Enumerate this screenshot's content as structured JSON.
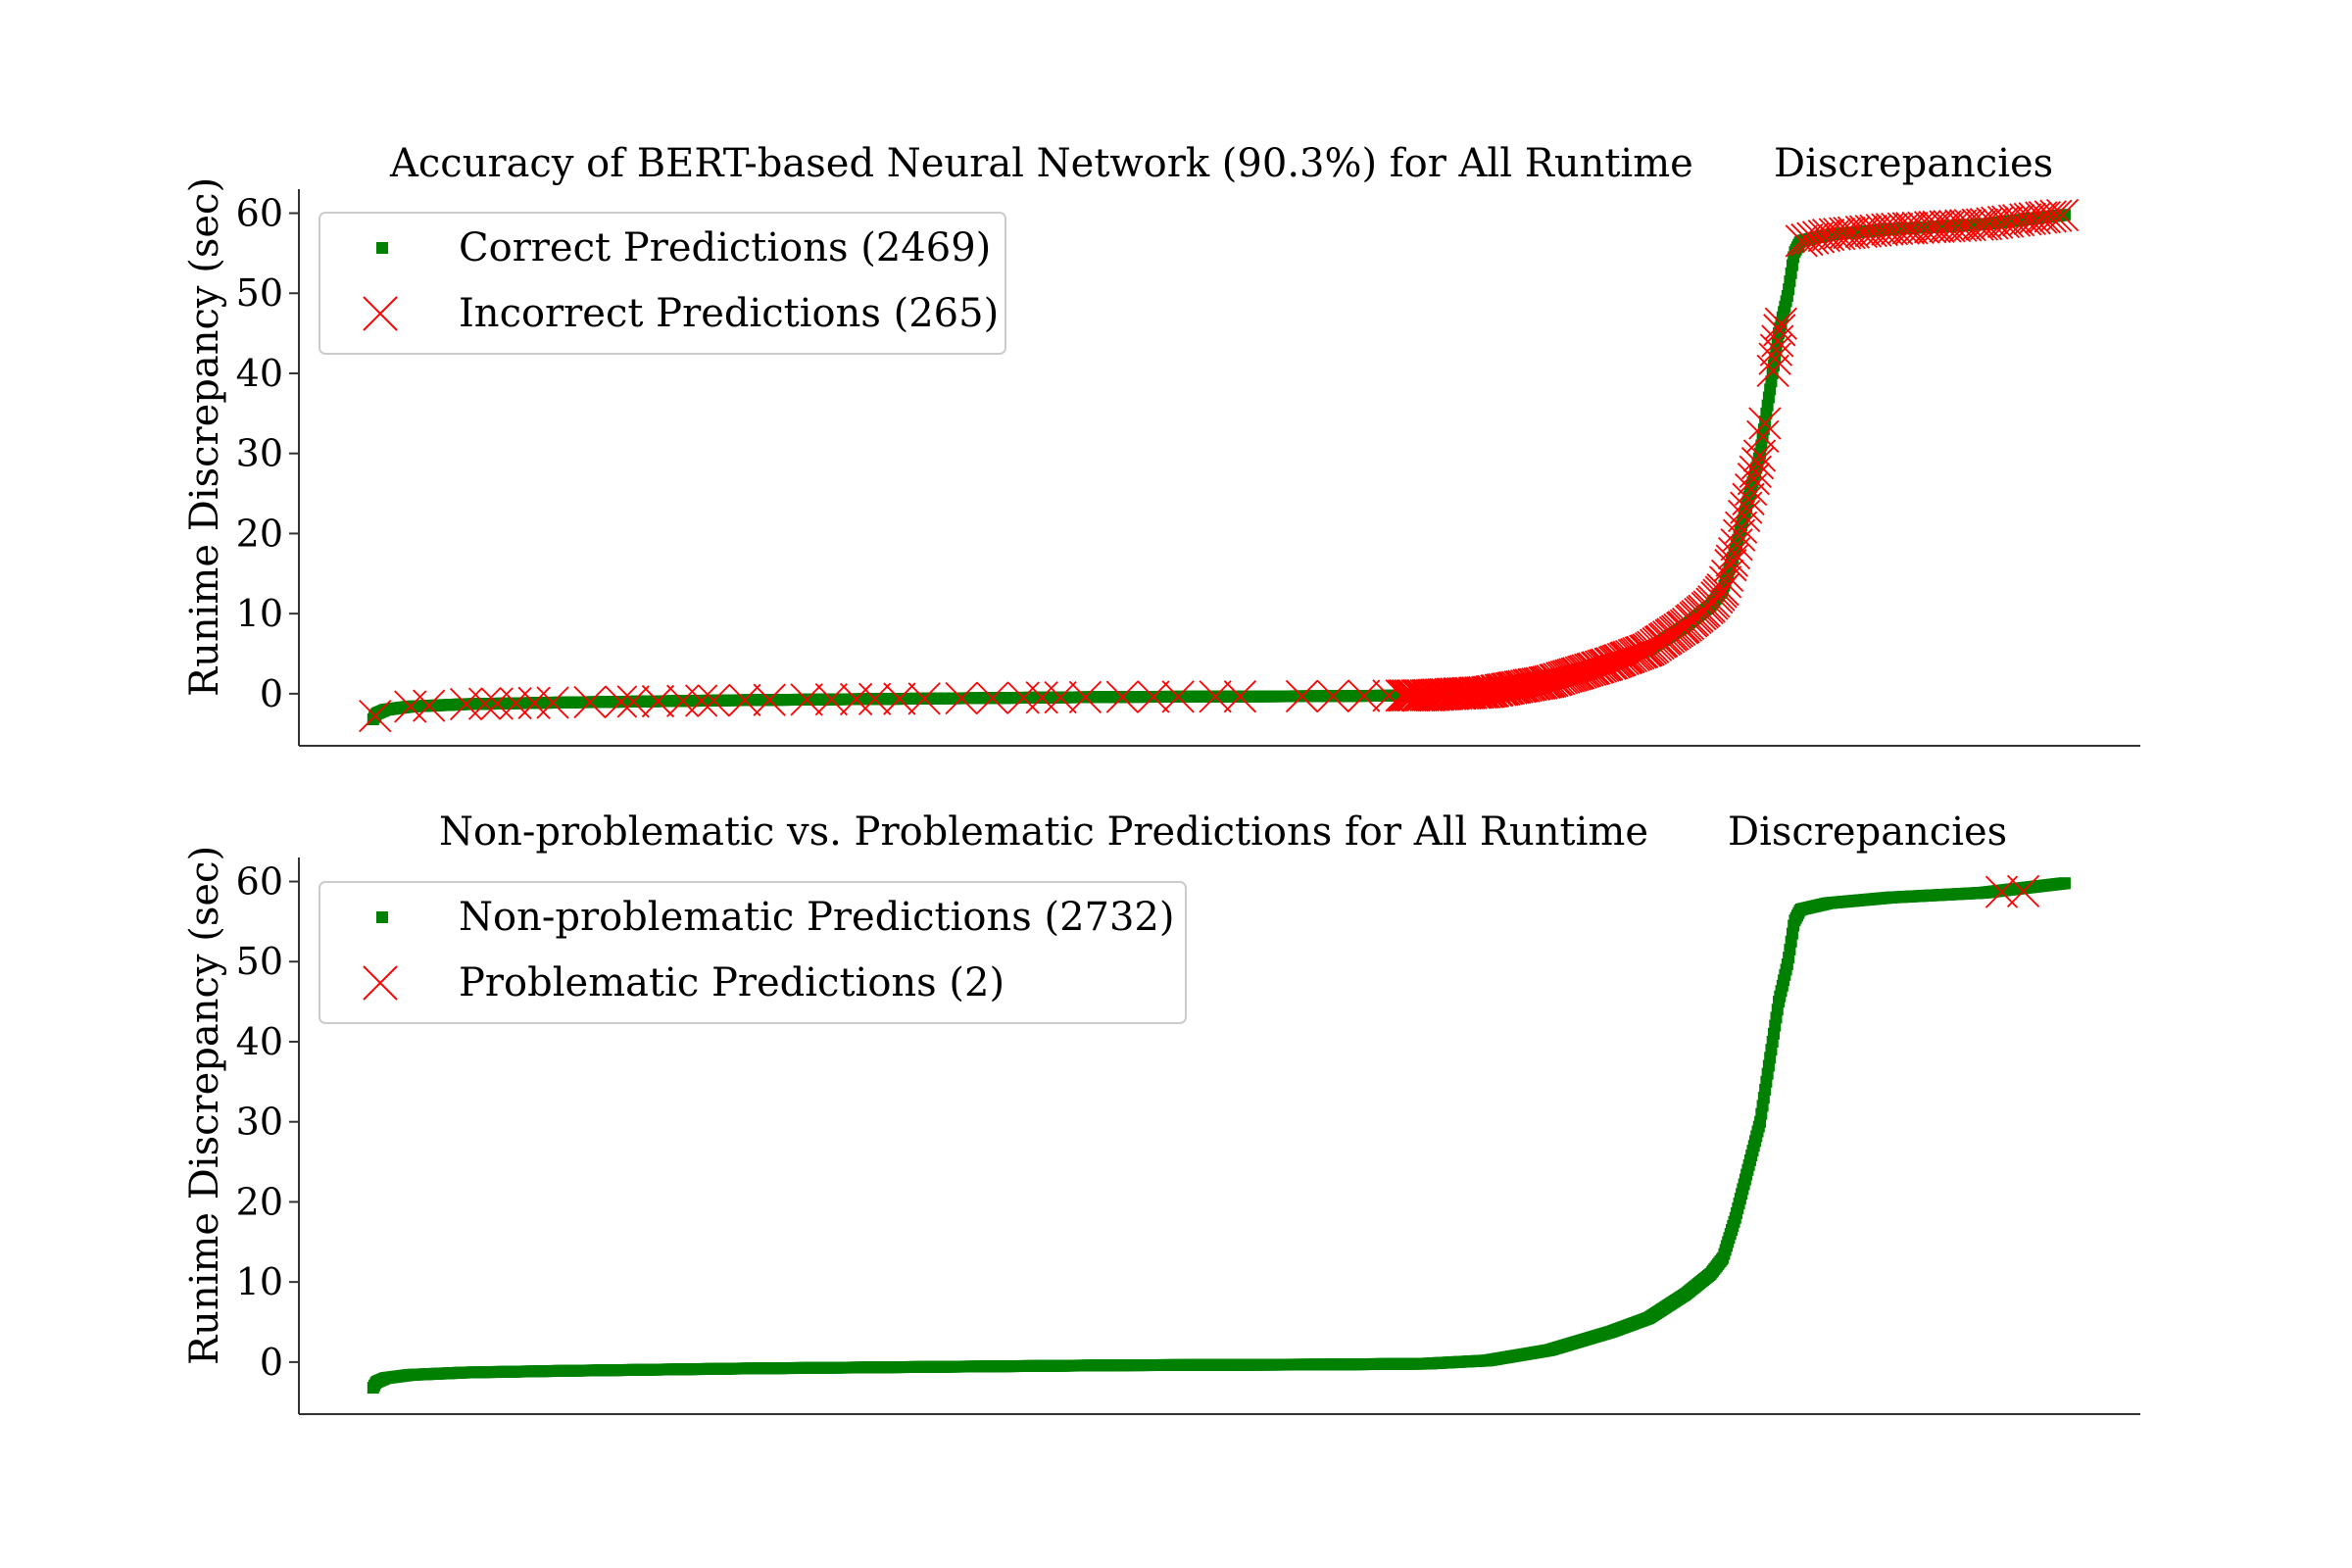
{
  "colors": {
    "correct": "#008000",
    "incorrect": "#ff0000",
    "axis": "#333333",
    "legend_border": "#cccccc"
  },
  "chart_data": [
    {
      "type": "scatter",
      "title_left": "Accuracy of BERT-based Neural Network (90.3%) for All Runtime",
      "title_right": "Discrepancies",
      "xlabel": "",
      "ylabel": "Runime Discrepancy (sec)",
      "ylim": [
        -6.5,
        63
      ],
      "yticks": [
        0,
        10,
        20,
        30,
        40,
        50,
        60
      ],
      "ytick_labels": [
        "0",
        "10",
        "20",
        "30",
        "40",
        "50",
        "60"
      ],
      "xlim": [
        -120,
        2854
      ],
      "x_ticks_shown": false,
      "grid": false,
      "legend_position": "top-left",
      "series": [
        {
          "name": "Correct Predictions (2469)",
          "marker": "square",
          "color": "#008000",
          "count": 2469
        },
        {
          "name": "Incorrect Predictions (265)",
          "marker": "x",
          "color": "#ff0000",
          "count": 265
        }
      ],
      "curve_profile": [
        [
          0,
          -3.2
        ],
        [
          5,
          -2.5
        ],
        [
          20,
          -2.0
        ],
        [
          60,
          -1.6
        ],
        [
          150,
          -1.3
        ],
        [
          300,
          -1.1
        ],
        [
          600,
          -0.8
        ],
        [
          900,
          -0.6
        ],
        [
          1200,
          -0.4
        ],
        [
          1550,
          -0.3
        ],
        [
          1700,
          -0.2
        ],
        [
          1800,
          0.2
        ],
        [
          1900,
          1.5
        ],
        [
          2000,
          3.8
        ],
        [
          2060,
          5.5
        ],
        [
          2120,
          8.5
        ],
        [
          2160,
          11
        ],
        [
          2180,
          13
        ],
        [
          2200,
          18
        ],
        [
          2220,
          24
        ],
        [
          2240,
          30
        ],
        [
          2260,
          40
        ],
        [
          2270,
          45
        ],
        [
          2285,
          50
        ],
        [
          2295,
          55
        ],
        [
          2305,
          56.5
        ],
        [
          2350,
          57.3
        ],
        [
          2450,
          58
        ],
        [
          2600,
          58.6
        ],
        [
          2733,
          59.8
        ]
      ],
      "incorrect_x": [
        3,
        60,
        90,
        150,
        180,
        200,
        230,
        260,
        290,
        350,
        400,
        420,
        460,
        500,
        530,
        550,
        600,
        640,
        700,
        740,
        780,
        810,
        850,
        890,
        950,
        1000,
        1050,
        1080,
        1110,
        1150,
        1210,
        1260,
        1300,
        1360,
        1400,
        1500,
        1550,
        1600,
        1640
      ],
      "incorrect_dense_ranges": [
        [
          1660,
          2120,
          130
        ],
        [
          2120,
          2250,
          35
        ],
        [
          2260,
          2275,
          6
        ],
        [
          2305,
          2733,
          50
        ]
      ]
    },
    {
      "type": "scatter",
      "title_left": "Non-problematic vs. Problematic Predictions for All Runtime",
      "title_right": "Discrepancies",
      "xlabel": "",
      "ylabel": "Runime Discrepancy (sec)",
      "ylim": [
        -6.5,
        63
      ],
      "yticks": [
        0,
        10,
        20,
        30,
        40,
        50,
        60
      ],
      "ytick_labels": [
        "0",
        "10",
        "20",
        "30",
        "40",
        "50",
        "60"
      ],
      "xlim": [
        -120,
        2854
      ],
      "x_ticks_shown": false,
      "grid": false,
      "legend_position": "top-left",
      "series": [
        {
          "name": "Non-problematic Predictions (2732)",
          "marker": "square",
          "color": "#008000",
          "count": 2732
        },
        {
          "name": "Problematic Predictions (2)",
          "marker": "x",
          "color": "#ff0000",
          "count": 2
        }
      ],
      "problematic_points": [
        [
          2630,
          58.7
        ],
        [
          2665,
          58.8
        ]
      ]
    }
  ]
}
